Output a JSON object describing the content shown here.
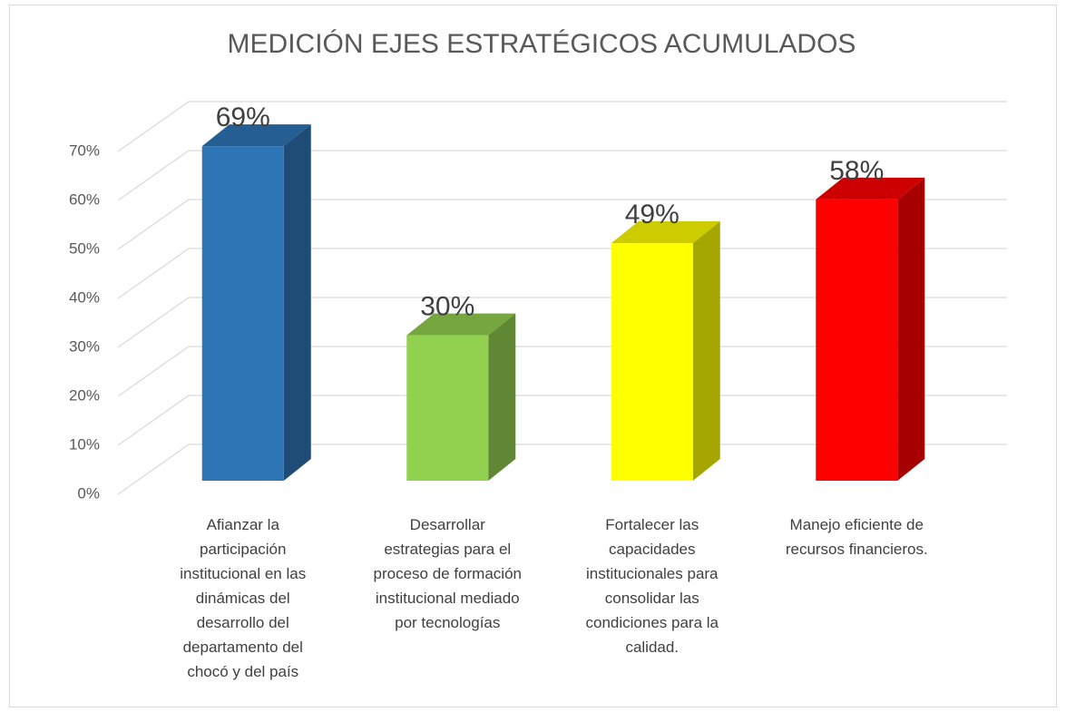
{
  "chart_data": {
    "type": "bar3d",
    "title": "MEDICIÓN EJES ESTRATÉGICOS ACUMULADOS",
    "categories": [
      "Afianzar la participación institucional en las dinámicas del desarrollo del departamento del chocó y del país",
      "Desarrollar estrategias para el proceso de formación institucional mediado por tecnologías",
      "Fortalecer las capacidades institucionales para consolidar las condiciones para la calidad.",
      "Manejo eficiente de recursos financieros."
    ],
    "values": [
      69,
      30,
      49,
      58
    ],
    "value_labels": [
      "69%",
      "30%",
      "49%",
      "58%"
    ],
    "colors": [
      "#2e75b6",
      "#92d050",
      "#ffff00",
      "#ff0000"
    ],
    "ylim": [
      0,
      70
    ],
    "yticks": [
      {
        "value": 0,
        "label": "0%"
      },
      {
        "value": 10,
        "label": "10%"
      },
      {
        "value": 20,
        "label": "20%"
      },
      {
        "value": 30,
        "label": "30%"
      },
      {
        "value": 40,
        "label": "40%"
      },
      {
        "value": 50,
        "label": "50%"
      },
      {
        "value": 60,
        "label": "60%"
      },
      {
        "value": 70,
        "label": "70%"
      }
    ],
    "grid": true
  }
}
